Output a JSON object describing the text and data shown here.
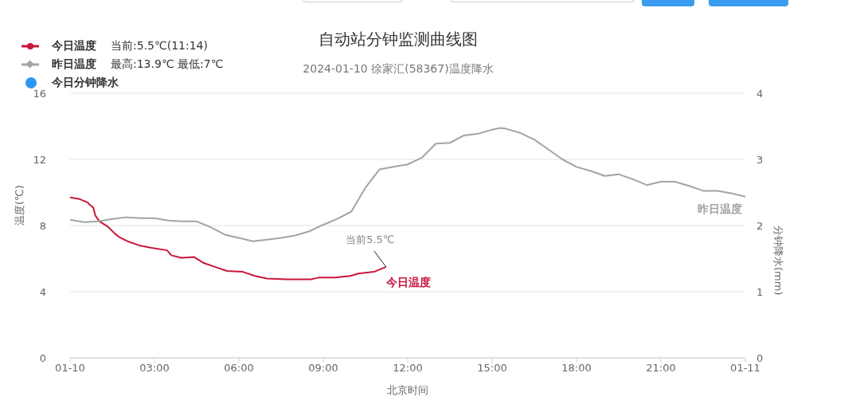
{
  "chart_data": {
    "type": "line",
    "title": "自动站分钟监测曲线图",
    "subtitle": "2024-01-10 徐家汇(58367)温度降水",
    "xlabel": "北京时间",
    "ylabel": "温度(℃)",
    "y2label": "分钟降水(mm)",
    "xlim": [
      0,
      24
    ],
    "xticks": [
      {
        "value": 0,
        "label": "01-10"
      },
      {
        "value": 3,
        "label": "03:00"
      },
      {
        "value": 6,
        "label": "06:00"
      },
      {
        "value": 9,
        "label": "09:00"
      },
      {
        "value": 12,
        "label": "12:00"
      },
      {
        "value": 15,
        "label": "15:00"
      },
      {
        "value": 18,
        "label": "18:00"
      },
      {
        "value": 21,
        "label": "21:00"
      },
      {
        "value": 24,
        "label": "01-11"
      }
    ],
    "ylim": [
      0,
      16
    ],
    "yticks": [
      0,
      4,
      8,
      12,
      16
    ],
    "y2lim": [
      0,
      4
    ],
    "y2ticks": [
      0,
      1,
      2,
      3,
      4
    ],
    "grid": "y",
    "legend": "top left",
    "marker": "none",
    "line_style": "solid",
    "annotations": [
      "当前:5.5℃(11:14)",
      "最高:13.9℃ 最低:7℃",
      {
        "text": "当前5.5℃",
        "x": 11.23,
        "y": 5.5
      }
    ],
    "series": [
      {
        "name": "今日温度",
        "color": "#c8163c",
        "x": [
          0,
          0.34,
          0.62,
          0.7,
          0.82,
          0.9,
          1.05,
          1.33,
          1.6,
          1.75,
          2.04,
          2.46,
          2.9,
          3.45,
          3.6,
          3.96,
          4.4,
          4.73,
          5.15,
          5.58,
          6.14,
          6.57,
          7.0,
          7.7,
          8.55,
          8.83,
          9.4,
          9.96,
          10.25,
          10.8,
          11.23
        ],
        "values": [
          9.7,
          9.6,
          9.4,
          9.25,
          9.1,
          8.6,
          8.25,
          7.95,
          7.5,
          7.3,
          7.05,
          6.8,
          6.65,
          6.5,
          6.2,
          6.05,
          6.1,
          5.75,
          5.5,
          5.25,
          5.2,
          4.95,
          4.8,
          4.75,
          4.75,
          4.85,
          4.85,
          4.95,
          5.1,
          5.2,
          5.5
        ]
      },
      {
        "name": "昨日温度",
        "color": "#a3a3a3",
        "x": [
          0,
          0.5,
          1,
          1.5,
          2,
          2.5,
          3,
          3.5,
          4,
          4.5,
          5,
          5.5,
          6,
          6.5,
          7,
          7.5,
          8,
          8.5,
          9,
          9.5,
          10,
          10.5,
          11,
          11.5,
          12,
          12.5,
          13,
          13.5,
          14,
          14.5,
          15,
          15.3,
          15.5,
          16,
          16.5,
          17,
          17.5,
          18,
          18.5,
          19,
          19.5,
          20,
          20.5,
          21,
          21.5,
          22,
          22.5,
          23,
          23.5,
          24
        ],
        "values": [
          8.35,
          8.2,
          8.25,
          8.4,
          8.5,
          8.45,
          8.45,
          8.3,
          8.25,
          8.25,
          7.9,
          7.45,
          7.25,
          7.05,
          7.15,
          7.25,
          7.4,
          7.65,
          8.05,
          8.4,
          8.85,
          10.3,
          11.4,
          11.55,
          11.7,
          12.1,
          12.95,
          13.0,
          13.45,
          13.55,
          13.8,
          13.9,
          13.85,
          13.6,
          13.2,
          12.6,
          12.0,
          11.55,
          11.3,
          11.0,
          11.1,
          10.8,
          10.45,
          10.65,
          10.65,
          10.4,
          10.1,
          10.1,
          9.95,
          9.75
        ]
      },
      {
        "name": "今日分钟降水",
        "color": "#2e96f0",
        "type": "bar"
      }
    ]
  }
}
